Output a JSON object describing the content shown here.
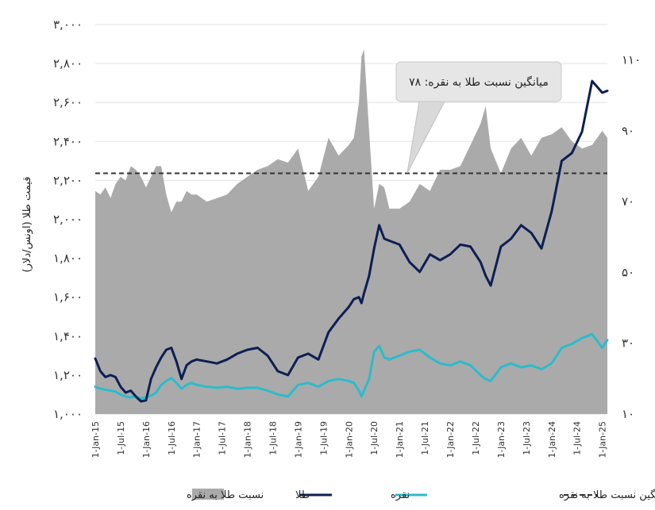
{
  "chart_data": {
    "type": "area",
    "ylabel": "قیمت طلا (اونس/دلار)",
    "ylim": [
      1000,
      3000
    ],
    "y_ticks": [
      "۱,۰۰۰",
      "۱,۲۰۰",
      "۱,۴۰۰",
      "۱,۶۰۰",
      "۱,۸۰۰",
      "۲,۰۰۰",
      "۲,۲۰۰",
      "۲,۴۰۰",
      "۲,۶۰۰",
      "۲,۸۰۰",
      "۳,۰۰۰"
    ],
    "y2lim": [
      10,
      120
    ],
    "y2_ticks": [
      "۱۰",
      "۳۰",
      "۵۰",
      "۷۰",
      "۹۰",
      "۱۱۰"
    ],
    "x_ticks": [
      "1-Jan-15",
      "1-Jul-15",
      "1-Jan-16",
      "1-Jul-16",
      "1-Jan-17",
      "1-Jul-17",
      "1-Jan-18",
      "1-Jul-18",
      "1-Jan-19",
      "1-Jul-19",
      "1-Jan-20",
      "1-Jul-20",
      "1-Jan-21",
      "1-Jul-21",
      "1-Jan-22",
      "1-Jul-22",
      "1-Jan-23",
      "1-Jul-23",
      "1-Jan-24",
      "1-Jul-24",
      "1-Jan-25"
    ],
    "x_start_year": 2015.0,
    "x_end_year": 2025.1,
    "grid": true,
    "legend_position": "bottom",
    "callout": "میانگین نسبت طلا به نقره: ۷۸",
    "series": [
      {
        "name": "نسبت طلا به نقره",
        "kind": "area",
        "axis": "right",
        "color": "#aaaaaa",
        "x": [
          2015.0,
          2015.1,
          2015.2,
          2015.3,
          2015.4,
          2015.5,
          2015.6,
          2015.7,
          2015.8,
          2015.9,
          2016.0,
          2016.1,
          2016.2,
          2016.3,
          2016.4,
          2016.5,
          2016.6,
          2016.7,
          2016.8,
          2016.9,
          2017.0,
          2017.2,
          2017.4,
          2017.6,
          2017.8,
          2018.0,
          2018.2,
          2018.4,
          2018.6,
          2018.8,
          2019.0,
          2019.2,
          2019.4,
          2019.6,
          2019.8,
          2020.0,
          2020.1,
          2020.2,
          2020.25,
          2020.3,
          2020.4,
          2020.5,
          2020.6,
          2020.7,
          2020.8,
          2021.0,
          2021.2,
          2021.4,
          2021.6,
          2021.8,
          2022.0,
          2022.2,
          2022.4,
          2022.6,
          2022.7,
          2022.8,
          2023.0,
          2023.2,
          2023.4,
          2023.6,
          2023.8,
          2024.0,
          2024.2,
          2024.4,
          2024.6,
          2024.8,
          2025.0,
          2025.1
        ],
        "values": [
          73,
          72,
          74,
          71,
          75,
          77,
          76,
          80,
          79,
          77,
          74,
          77,
          80,
          80,
          72,
          67,
          70,
          70,
          73,
          72,
          72,
          70,
          71,
          72,
          75,
          77,
          79,
          80,
          82,
          81,
          85,
          73,
          77,
          88,
          83,
          86,
          88,
          98,
          111,
          113,
          90,
          68,
          75,
          74,
          68,
          68,
          70,
          75,
          73,
          79,
          79,
          80,
          86,
          92,
          97,
          85,
          78,
          85,
          88,
          83,
          88,
          89,
          91,
          87,
          85,
          86,
          90,
          88
        ]
      },
      {
        "name": "طلا",
        "kind": "line",
        "axis": "left",
        "color": "#0c1f54",
        "x": [
          2015.0,
          2015.1,
          2015.2,
          2015.3,
          2015.4,
          2015.5,
          2015.6,
          2015.7,
          2015.8,
          2015.9,
          2016.0,
          2016.1,
          2016.2,
          2016.3,
          2016.4,
          2016.5,
          2016.6,
          2016.7,
          2016.8,
          2016.9,
          2017.0,
          2017.2,
          2017.4,
          2017.6,
          2017.8,
          2018.0,
          2018.2,
          2018.4,
          2018.6,
          2018.8,
          2019.0,
          2019.2,
          2019.4,
          2019.6,
          2019.8,
          2020.0,
          2020.1,
          2020.2,
          2020.25,
          2020.3,
          2020.4,
          2020.5,
          2020.6,
          2020.7,
          2020.8,
          2021.0,
          2021.2,
          2021.4,
          2021.6,
          2021.8,
          2022.0,
          2022.2,
          2022.4,
          2022.6,
          2022.7,
          2022.8,
          2023.0,
          2023.2,
          2023.4,
          2023.6,
          2023.8,
          2024.0,
          2024.2,
          2024.4,
          2024.6,
          2024.8,
          2025.0,
          2025.1
        ],
        "values": [
          1285,
          1220,
          1190,
          1200,
          1190,
          1140,
          1110,
          1120,
          1090,
          1065,
          1070,
          1180,
          1240,
          1290,
          1330,
          1340,
          1270,
          1180,
          1250,
          1270,
          1280,
          1270,
          1260,
          1280,
          1310,
          1330,
          1340,
          1300,
          1220,
          1200,
          1290,
          1310,
          1280,
          1420,
          1490,
          1550,
          1590,
          1600,
          1570,
          1620,
          1710,
          1850,
          1970,
          1900,
          1890,
          1870,
          1780,
          1730,
          1820,
          1790,
          1820,
          1870,
          1860,
          1780,
          1710,
          1660,
          1860,
          1900,
          1970,
          1930,
          1850,
          2040,
          2300,
          2340,
          2450,
          2710,
          2650,
          2660
        ]
      },
      {
        "name": "نقره",
        "kind": "line",
        "axis": "left",
        "color": "#2bbccb",
        "x": [
          2015.0,
          2015.1,
          2015.2,
          2015.3,
          2015.4,
          2015.5,
          2015.6,
          2015.7,
          2015.8,
          2015.9,
          2016.0,
          2016.1,
          2016.2,
          2016.3,
          2016.4,
          2016.5,
          2016.6,
          2016.7,
          2016.8,
          2016.9,
          2017.0,
          2017.2,
          2017.4,
          2017.6,
          2017.8,
          2018.0,
          2018.2,
          2018.4,
          2018.6,
          2018.8,
          2019.0,
          2019.2,
          2019.4,
          2019.6,
          2019.8,
          2020.0,
          2020.1,
          2020.2,
          2020.25,
          2020.3,
          2020.4,
          2020.5,
          2020.6,
          2020.7,
          2020.8,
          2021.0,
          2021.2,
          2021.4,
          2021.6,
          2021.8,
          2022.0,
          2022.2,
          2022.4,
          2022.6,
          2022.7,
          2022.8,
          2023.0,
          2023.2,
          2023.4,
          2023.6,
          2023.8,
          2024.0,
          2024.2,
          2024.4,
          2024.6,
          2024.8,
          2025.0,
          2025.1
        ],
        "values": [
          1140,
          1130,
          1125,
          1120,
          1115,
          1100,
          1090,
          1085,
          1090,
          1080,
          1085,
          1095,
          1110,
          1150,
          1170,
          1185,
          1160,
          1130,
          1150,
          1160,
          1150,
          1140,
          1135,
          1140,
          1130,
          1135,
          1135,
          1120,
          1100,
          1090,
          1150,
          1160,
          1140,
          1170,
          1180,
          1170,
          1160,
          1120,
          1090,
          1120,
          1180,
          1320,
          1350,
          1290,
          1280,
          1300,
          1320,
          1330,
          1290,
          1260,
          1250,
          1270,
          1250,
          1200,
          1180,
          1170,
          1240,
          1260,
          1240,
          1250,
          1230,
          1260,
          1340,
          1360,
          1390,
          1410,
          1340,
          1380
        ]
      },
      {
        "name": "میانگین نسبت طلا به نقره",
        "kind": "dashed-line",
        "axis": "right",
        "color": "#333333",
        "values": [
          78,
          78
        ]
      }
    ]
  }
}
